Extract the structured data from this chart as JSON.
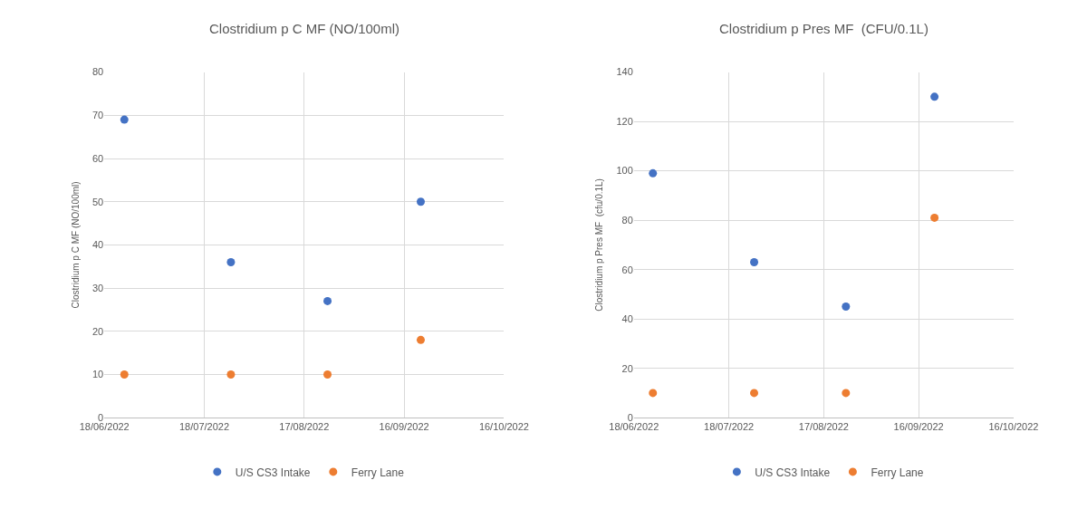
{
  "chart_data": [
    {
      "type": "scatter",
      "title": "Clostridium p C MF (NO/100ml)",
      "ylabel": "Clostridium p C MF (NO/100ml)",
      "x": [
        "2022-06-24",
        "2022-07-26",
        "2022-08-24",
        "2022-09-21"
      ],
      "series": [
        {
          "name": "U/S CS3 Intake",
          "color": "#4472c4",
          "values": [
            69,
            36,
            27,
            50
          ]
        },
        {
          "name": "Ferry Lane",
          "color": "#ed7d31",
          "values": [
            10,
            10,
            10,
            18
          ]
        }
      ],
      "xlim": [
        "2022-06-18",
        "2022-10-16"
      ],
      "xticks": [
        {
          "value": "2022-06-18",
          "label": "18/06/2022"
        },
        {
          "value": "2022-07-18",
          "label": "18/07/2022"
        },
        {
          "value": "2022-08-17",
          "label": "17/08/2022"
        },
        {
          "value": "2022-09-16",
          "label": "16/09/2022"
        },
        {
          "value": "2022-10-16",
          "label": "16/10/2022"
        }
      ],
      "ylim": [
        0,
        80
      ],
      "yticks": [
        0,
        10,
        20,
        30,
        40,
        50,
        60,
        70,
        80
      ],
      "grid": true,
      "legend": "bottom",
      "marker": "circle"
    },
    {
      "type": "scatter",
      "title": "Clostridium p Pres MF  (CFU/0.1L)",
      "ylabel": "Clostridium p Pres MF  (cfu/0.1L)",
      "x": [
        "2022-06-24",
        "2022-07-26",
        "2022-08-24",
        "2022-09-21"
      ],
      "series": [
        {
          "name": "U/S CS3 Intake",
          "color": "#4472c4",
          "values": [
            99,
            63,
            45,
            130
          ]
        },
        {
          "name": "Ferry Lane",
          "color": "#ed7d31",
          "values": [
            10,
            10,
            10,
            81
          ]
        }
      ],
      "xlim": [
        "2022-06-18",
        "2022-10-16"
      ],
      "xticks": [
        {
          "value": "2022-06-18",
          "label": "18/06/2022"
        },
        {
          "value": "2022-07-18",
          "label": "18/07/2022"
        },
        {
          "value": "2022-08-17",
          "label": "17/08/2022"
        },
        {
          "value": "2022-09-16",
          "label": "16/09/2022"
        },
        {
          "value": "2022-10-16",
          "label": "16/10/2022"
        }
      ],
      "ylim": [
        0,
        140
      ],
      "yticks": [
        0,
        20,
        40,
        60,
        80,
        100,
        120,
        140
      ],
      "grid": true,
      "legend": "bottom",
      "marker": "circle"
    }
  ]
}
